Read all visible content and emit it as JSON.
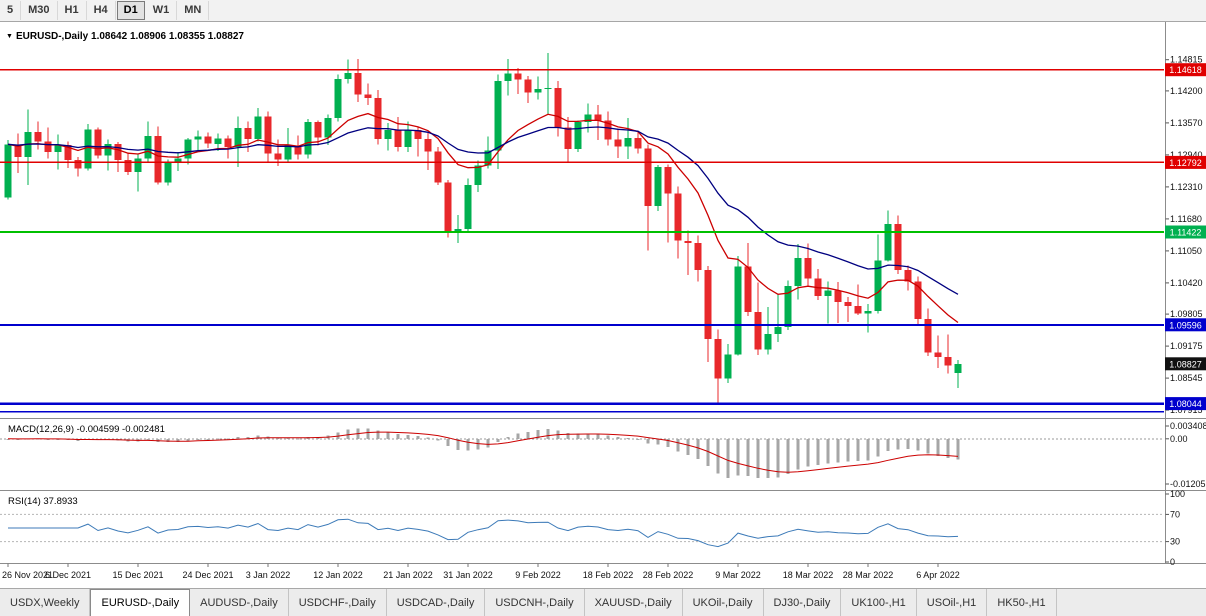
{
  "toolbar": {
    "timeframes": [
      {
        "label": "5"
      },
      {
        "label": "M30"
      },
      {
        "label": "H1"
      },
      {
        "label": "H4"
      },
      {
        "label": "D1"
      },
      {
        "label": "W1"
      },
      {
        "label": "MN"
      }
    ],
    "active": "D1"
  },
  "chart": {
    "header_marker": "▼",
    "header_text": "EURUSD-,Daily  1.08642 1.08906 1.08355 1.08827",
    "macd_title": "MACD(12,26,9) -0.004599 -0.002481",
    "rsi_title": "RSI(14) 37.8933"
  },
  "theme": {
    "up": "#00b050",
    "down": "#e8282b",
    "macd_hist": "#a6a6a6",
    "macd_signal": "#cc0000",
    "rsi": "#3c7ab8"
  },
  "chart_data": {
    "type": "candlestick",
    "symbol": "EURUSD-",
    "timeframe": "Daily",
    "current_ohlc": {
      "open": 1.08642,
      "high": 1.08906,
      "low": 1.08355,
      "close": 1.08827
    },
    "price_axis": {
      "min": 1.0776,
      "max": 1.154,
      "labels": [
        "1.14815",
        "1.14200",
        "1.13570",
        "1.12940",
        "1.12310",
        "1.11680",
        "1.11050",
        "1.10420",
        "1.09805",
        "1.09175",
        "1.08545",
        "1.07915"
      ]
    },
    "badges": [
      {
        "price": 1.14618,
        "label": "1.14618",
        "color": "#e00000"
      },
      {
        "price": 1.12792,
        "label": "1.12792",
        "color": "#e00000"
      },
      {
        "price": 1.11422,
        "label": "1.11422",
        "color": "#00b050"
      },
      {
        "price": 1.09596,
        "label": "1.09596",
        "color": "#0000cd"
      },
      {
        "price": 1.08827,
        "label": "1.08827",
        "color": "#111111"
      },
      {
        "price": 1.08044,
        "label": "1.08044",
        "color": "#0000cd"
      }
    ],
    "hlines": [
      {
        "price": 1.14618,
        "color": "#e00000",
        "width": 1.4
      },
      {
        "price": 1.12792,
        "color": "#e00000",
        "width": 1.4
      },
      {
        "price": 1.11422,
        "color": "#00c000",
        "width": 1.8
      },
      {
        "price": 1.09596,
        "color": "#0000cd",
        "width": 2
      },
      {
        "price": 1.08044,
        "color": "#0000cd",
        "width": 2.4
      },
      {
        "price": 1.0788,
        "color": "#0000cd",
        "width": 1.5
      }
    ],
    "moving_averages": [
      {
        "type": "ema",
        "period": 12,
        "color": "#cc0000"
      },
      {
        "type": "ema",
        "period": 26,
        "color": "#000080"
      }
    ],
    "macd": {
      "fast": 12,
      "slow": 26,
      "signal": 9,
      "current": -0.004599,
      "current_signal": -0.002481,
      "range": [
        -0.01205,
        0.003408
      ],
      "axis": [
        {
          "value": 0.003408,
          "label": "0.003408"
        },
        {
          "value": 0,
          "label": "0.00"
        },
        {
          "value": -0.01205,
          "label": "-0.01205"
        }
      ]
    },
    "rsi": {
      "period": 14,
      "current": 37.8933,
      "levels": [
        70,
        30
      ],
      "axis": [
        {
          "value": 100,
          "label": "100"
        },
        {
          "value": 70,
          "label": "70"
        },
        {
          "value": 30,
          "label": "30"
        },
        {
          "value": 0,
          "label": "0"
        }
      ]
    },
    "x_labels": [
      {
        "index": 0,
        "label": "26 Nov 2021"
      },
      {
        "index": 6,
        "label": "6 Dec 2021"
      },
      {
        "index": 13,
        "label": "15 Dec 2021"
      },
      {
        "index": 20,
        "label": "24 Dec 2021"
      },
      {
        "index": 26,
        "label": "3 Jan 2022"
      },
      {
        "index": 33,
        "label": "12 Jan 2022"
      },
      {
        "index": 40,
        "label": "21 Jan 2022"
      },
      {
        "index": 46,
        "label": "31 Jan 2022"
      },
      {
        "index": 53,
        "label": "9 Feb 2022"
      },
      {
        "index": 60,
        "label": "18 Feb 2022"
      },
      {
        "index": 66,
        "label": "28 Feb 2022"
      },
      {
        "index": 73,
        "label": "9 Mar 2022"
      },
      {
        "index": 80,
        "label": "18 Mar 2022"
      },
      {
        "index": 86,
        "label": "28 Mar 2022"
      },
      {
        "index": 93,
        "label": "6 Apr 2022"
      }
    ],
    "candles": [
      [
        1.121,
        1.1323,
        1.1206,
        1.1315
      ],
      [
        1.1315,
        1.1336,
        1.1258,
        1.129
      ],
      [
        1.129,
        1.1383,
        1.1235,
        1.1339
      ],
      [
        1.1339,
        1.136,
        1.1305,
        1.132
      ],
      [
        1.132,
        1.1348,
        1.1287,
        1.13
      ],
      [
        1.13,
        1.1334,
        1.1265,
        1.1314
      ],
      [
        1.1314,
        1.132,
        1.1268,
        1.1284
      ],
      [
        1.1284,
        1.129,
        1.1252,
        1.1267
      ],
      [
        1.1267,
        1.1355,
        1.1263,
        1.1344
      ],
      [
        1.1344,
        1.1348,
        1.1287,
        1.1293
      ],
      [
        1.1293,
        1.1324,
        1.1263,
        1.1316
      ],
      [
        1.1316,
        1.1319,
        1.126,
        1.1284
      ],
      [
        1.1284,
        1.1298,
        1.1254,
        1.126
      ],
      [
        1.126,
        1.1297,
        1.1222,
        1.1287
      ],
      [
        1.1287,
        1.136,
        1.128,
        1.1331
      ],
      [
        1.1331,
        1.135,
        1.1236,
        1.124
      ],
      [
        1.124,
        1.1285,
        1.1234,
        1.128
      ],
      [
        1.128,
        1.13,
        1.1262,
        1.1287
      ],
      [
        1.1287,
        1.1327,
        1.1275,
        1.1324
      ],
      [
        1.1324,
        1.1342,
        1.13,
        1.133
      ],
      [
        1.133,
        1.1338,
        1.1308,
        1.1316
      ],
      [
        1.1316,
        1.1336,
        1.1302,
        1.1326
      ],
      [
        1.1326,
        1.1332,
        1.1287,
        1.131
      ],
      [
        1.131,
        1.137,
        1.127,
        1.1347
      ],
      [
        1.1347,
        1.136,
        1.13,
        1.1325
      ],
      [
        1.1325,
        1.1386,
        1.132,
        1.137
      ],
      [
        1.137,
        1.138,
        1.1279,
        1.1297
      ],
      [
        1.1297,
        1.1324,
        1.1272,
        1.1285
      ],
      [
        1.1285,
        1.1347,
        1.128,
        1.1313
      ],
      [
        1.1313,
        1.1332,
        1.1285,
        1.1295
      ],
      [
        1.1295,
        1.1365,
        1.1287,
        1.1359
      ],
      [
        1.1359,
        1.1362,
        1.1313,
        1.1328
      ],
      [
        1.1328,
        1.1374,
        1.1314,
        1.1367
      ],
      [
        1.1367,
        1.1452,
        1.136,
        1.1444
      ],
      [
        1.1444,
        1.1482,
        1.1435,
        1.1455
      ],
      [
        1.1455,
        1.1483,
        1.1398,
        1.1413
      ],
      [
        1.1413,
        1.1435,
        1.1392,
        1.1406
      ],
      [
        1.1406,
        1.1422,
        1.1315,
        1.1325
      ],
      [
        1.1325,
        1.1357,
        1.1303,
        1.1343
      ],
      [
        1.1343,
        1.1369,
        1.1301,
        1.131
      ],
      [
        1.131,
        1.136,
        1.13,
        1.1343
      ],
      [
        1.1343,
        1.1349,
        1.1291,
        1.1325
      ],
      [
        1.1325,
        1.1339,
        1.1264,
        1.1301
      ],
      [
        1.1301,
        1.131,
        1.1235,
        1.124
      ],
      [
        1.124,
        1.1245,
        1.1131,
        1.1144
      ],
      [
        1.1144,
        1.1176,
        1.1121,
        1.1148
      ],
      [
        1.1148,
        1.1248,
        1.114,
        1.1235
      ],
      [
        1.1235,
        1.1283,
        1.1221,
        1.1273
      ],
      [
        1.1273,
        1.133,
        1.1267,
        1.1303
      ],
      [
        1.1303,
        1.1452,
        1.1266,
        1.144
      ],
      [
        1.144,
        1.1483,
        1.1411,
        1.1454
      ],
      [
        1.1454,
        1.1465,
        1.1414,
        1.1443
      ],
      [
        1.1443,
        1.1449,
        1.1396,
        1.1417
      ],
      [
        1.1417,
        1.1448,
        1.1403,
        1.1424
      ],
      [
        1.1424,
        1.1495,
        1.1375,
        1.1426
      ],
      [
        1.1426,
        1.144,
        1.133,
        1.1348
      ],
      [
        1.1348,
        1.1369,
        1.1278,
        1.1306
      ],
      [
        1.1306,
        1.1362,
        1.13,
        1.1359
      ],
      [
        1.1359,
        1.1395,
        1.1338,
        1.1374
      ],
      [
        1.1374,
        1.1392,
        1.1323,
        1.1362
      ],
      [
        1.1362,
        1.138,
        1.1313,
        1.1324
      ],
      [
        1.1324,
        1.1346,
        1.1288,
        1.1311
      ],
      [
        1.1311,
        1.1367,
        1.1286,
        1.1327
      ],
      [
        1.1327,
        1.1342,
        1.1297,
        1.1307
      ],
      [
        1.1307,
        1.1315,
        1.1106,
        1.1193
      ],
      [
        1.1193,
        1.1274,
        1.1184,
        1.127
      ],
      [
        1.127,
        1.1275,
        1.1122,
        1.1218
      ],
      [
        1.1218,
        1.1232,
        1.109,
        1.1125
      ],
      [
        1.1125,
        1.1145,
        1.1058,
        1.1121
      ],
      [
        1.1121,
        1.1135,
        1.1045,
        1.1067
      ],
      [
        1.1067,
        1.1075,
        1.0886,
        1.0932
      ],
      [
        1.0932,
        1.095,
        1.0806,
        1.0854
      ],
      [
        1.0854,
        1.0922,
        1.0845,
        1.0901
      ],
      [
        1.0901,
        1.1095,
        1.0899,
        1.1074
      ],
      [
        1.1074,
        1.1121,
        1.0977,
        1.0985
      ],
      [
        1.0985,
        1.1043,
        1.09,
        1.0911
      ],
      [
        1.0911,
        1.0995,
        1.0901,
        1.0941
      ],
      [
        1.0941,
        1.102,
        1.0926,
        1.0955
      ],
      [
        1.0955,
        1.1047,
        1.0949,
        1.1036
      ],
      [
        1.1036,
        1.1119,
        1.1009,
        1.1091
      ],
      [
        1.1091,
        1.112,
        1.1035,
        1.1051
      ],
      [
        1.1051,
        1.1069,
        1.1008,
        1.1016
      ],
      [
        1.1016,
        1.1045,
        1.0962,
        1.1027
      ],
      [
        1.1027,
        1.1044,
        1.0963,
        1.1004
      ],
      [
        1.1004,
        1.1014,
        1.0965,
        1.0997
      ],
      [
        1.0997,
        1.1039,
        1.0979,
        1.0982
      ],
      [
        1.0982,
        1.1,
        1.0944,
        1.0987
      ],
      [
        1.0987,
        1.1137,
        1.0982,
        1.1086
      ],
      [
        1.1086,
        1.1185,
        1.1084,
        1.1158
      ],
      [
        1.1158,
        1.1175,
        1.106,
        1.1067
      ],
      [
        1.1067,
        1.1076,
        1.1027,
        1.1045
      ],
      [
        1.1045,
        1.1055,
        1.0961,
        1.0971
      ],
      [
        1.0971,
        1.0992,
        1.0898,
        1.0905
      ],
      [
        1.0905,
        1.0938,
        1.0874,
        1.0896
      ],
      [
        1.0896,
        1.094,
        1.0864,
        1.0879
      ],
      [
        1.08642,
        1.08906,
        1.08355,
        1.08827
      ]
    ]
  },
  "bottom_tabs": {
    "tabs": [
      {
        "label": "USDX,Weekly",
        "active": false
      },
      {
        "label": "EURUSD-,Daily",
        "active": true
      },
      {
        "label": "AUDUSD-,Daily",
        "active": false
      },
      {
        "label": "USDCHF-,Daily",
        "active": false
      },
      {
        "label": "USDCAD-,Daily",
        "active": false
      },
      {
        "label": "USDCNH-,Daily",
        "active": false
      },
      {
        "label": "XAUUSD-,Daily",
        "active": false
      },
      {
        "label": "UKOil-,Daily",
        "active": false
      },
      {
        "label": "DJ30-,Daily",
        "active": false
      },
      {
        "label": "UK100-,H1",
        "active": false
      },
      {
        "label": "USOil-,H1",
        "active": false
      },
      {
        "label": "HK50-,H1",
        "active": false
      }
    ]
  }
}
